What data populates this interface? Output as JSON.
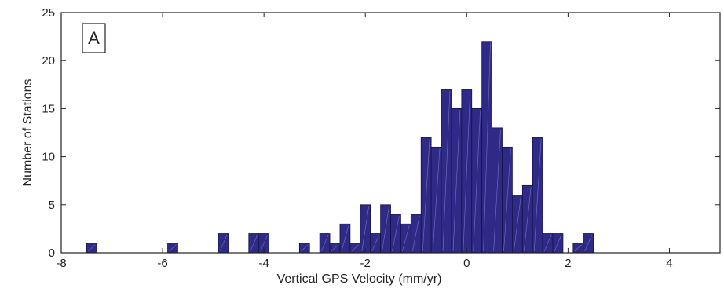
{
  "chart_data": {
    "type": "bar",
    "panel_label": "A",
    "xlabel": "Vertical GPS Velocity (mm/yr)",
    "ylabel": "Number of Stations",
    "xlim": [
      -8,
      5
    ],
    "ylim": [
      0,
      25
    ],
    "xticks": [
      "-8",
      "-6",
      "-4",
      "-2",
      "0",
      "2",
      "4"
    ],
    "yticks": [
      "0",
      "5",
      "10",
      "15",
      "20",
      "25"
    ],
    "bin_width": 0.2,
    "bin_centers": [
      -7.4,
      -5.8,
      -4.8,
      -4.2,
      -4.0,
      -3.2,
      -2.8,
      -2.6,
      -2.4,
      -2.2,
      -2.0,
      -1.8,
      -1.6,
      -1.4,
      -1.2,
      -1.0,
      -0.8,
      -0.6,
      -0.4,
      -0.2,
      0.0,
      0.2,
      0.4,
      0.6,
      0.8,
      1.0,
      1.2,
      1.4,
      1.6,
      1.8,
      2.2,
      2.4
    ],
    "values": [
      1,
      1,
      2,
      2,
      2,
      1,
      2,
      1,
      3,
      1,
      5,
      2,
      5,
      4,
      3,
      4,
      12,
      11,
      17,
      15,
      17,
      15,
      22,
      13,
      11,
      6,
      7,
      12,
      2,
      2,
      1,
      2
    ],
    "colors": {
      "bar": "#2e2a85",
      "bar_edge": "#15134a",
      "hatch": "#6c69b8",
      "axis": "#222222"
    },
    "grid": false
  }
}
